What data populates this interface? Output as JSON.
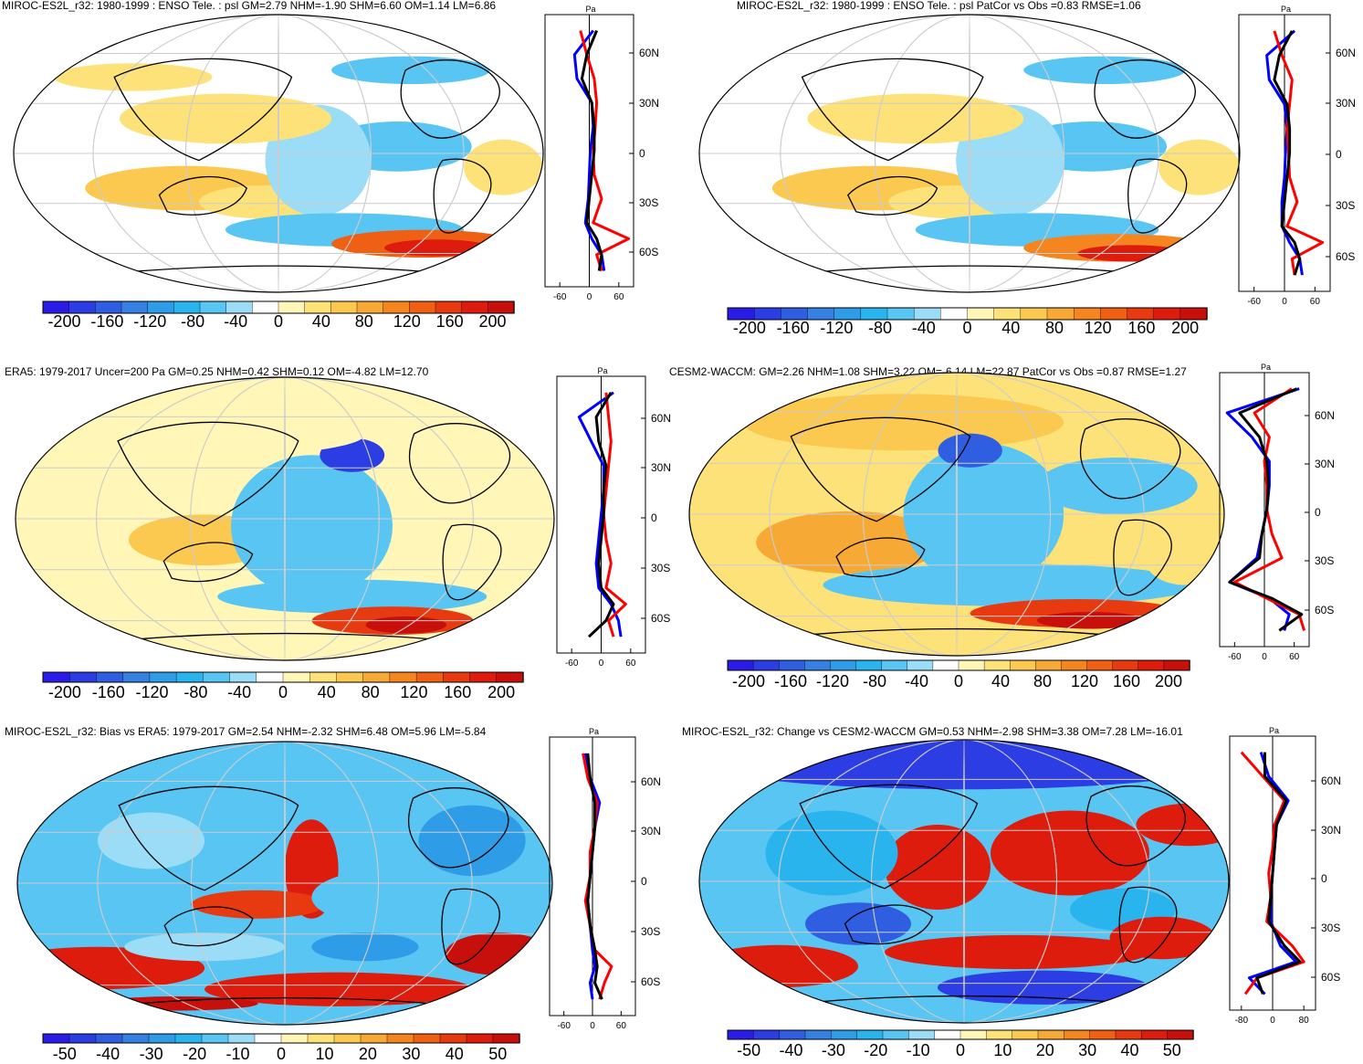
{
  "palette_warm_cool": [
    "#2a1ce6",
    "#2b3de3",
    "#2f5ee0",
    "#3580e0",
    "#2f9ce8",
    "#29b4ee",
    "#59c5f2",
    "#9bdcf7",
    "#ffffff",
    "#fff6b8",
    "#fde27a",
    "#fbc94f",
    "#f7a935",
    "#f4851f",
    "#ef5f14",
    "#e83a10",
    "#dd1c0d",
    "#c7100c"
  ],
  "colorbar_a": {
    "labels": [
      "-200",
      "-160",
      "-120",
      "-80",
      "-40",
      "0",
      "40",
      "80",
      "120",
      "160",
      "200"
    ]
  },
  "colorbar_b": {
    "labels": [
      "-50",
      "-40",
      "-30",
      "-20",
      "-10",
      "0",
      "10",
      "20",
      "30",
      "40",
      "50"
    ]
  },
  "panels": [
    {
      "title": "MIROC-ES2L_r32: 1980-1999 : ENSO Tele. : psl GM=2.79 NHM=-1.90 SHM=6.60 OM=1.14 LM=6.86",
      "unit": "Pa",
      "lat_labels": [
        "60N",
        "30N",
        "0",
        "30S",
        "60S"
      ],
      "x_ticks": [
        "-60",
        "0",
        "60"
      ],
      "colorbar": "a"
    },
    {
      "title": "MIROC-ES2L_r32: 1980-1999 : ENSO Tele. : psl PatCor vs Obs =0.83 RMSE=1.06",
      "unit": "Pa",
      "lat_labels": [
        "60N",
        "30N",
        "0",
        "30S",
        "60S"
      ],
      "x_ticks": [
        "-60",
        "0",
        "60"
      ],
      "colorbar": "a"
    },
    {
      "title": "ERA5: 1979-2017 Uncer=200 Pa GM=0.25 NHM=0.42 SHM=0.12 OM=-4.82 LM=12.70",
      "unit": "Pa",
      "lat_labels": [
        "60N",
        "30N",
        "0",
        "30S",
        "60S"
      ],
      "x_ticks": [
        "-60",
        "0",
        "60"
      ],
      "colorbar": "a"
    },
    {
      "title": "CESM2-WACCM: GM=2.26 NHM=1.08 SHM=3.22 OM=-6.14 LM=22.87 PatCor vs Obs =0.87 RMSE=1.27",
      "unit": "Pa",
      "lat_labels": [
        "60N",
        "30N",
        "0",
        "30S",
        "60S"
      ],
      "x_ticks": [
        "-60",
        "0",
        "60"
      ],
      "colorbar": "a"
    },
    {
      "title": "MIROC-ES2L_r32: Bias vs ERA5: 1979-2017 GM=2.54 NHM=-2.32 SHM=6.48 OM=5.96 LM=-5.84",
      "unit": "Pa",
      "lat_labels": [
        "60N",
        "30N",
        "0",
        "30S",
        "60S"
      ],
      "x_ticks": [
        "-60",
        "0",
        "60"
      ],
      "colorbar": "b"
    },
    {
      "title": "MIROC-ES2L_r32: Change vs CESM2-WACCM GM=0.53 NHM=-2.98 SHM=3.38 OM=7.28 LM=-16.01",
      "unit": "Pa",
      "lat_labels": [
        "60N",
        "30N",
        "0",
        "30S",
        "60S"
      ],
      "x_ticks": [
        "-80",
        "0",
        "80"
      ],
      "colorbar": "b"
    }
  ],
  "chart_data": [
    {
      "type": "line",
      "title": "MIROC-ES2L_r32: 1980-1999 : ENSO Tele. : psl GM=2.79 NHM=-1.90 SHM=6.60 OM=1.14 LM=6.86",
      "xlabel": "Pa",
      "xlim": [
        -90,
        90
      ],
      "ylim": [
        -85,
        85
      ],
      "y": [
        75,
        60,
        45,
        30,
        15,
        0,
        -15,
        -30,
        -45,
        -55,
        -65,
        -75
      ],
      "series": [
        {
          "color": "#0000ff",
          "values": [
            8,
            -30,
            -25,
            5,
            8,
            2,
            0,
            -2,
            -8,
            5,
            25,
            30
          ]
        },
        {
          "color": "#ff0000",
          "values": [
            -18,
            -5,
            10,
            15,
            12,
            8,
            10,
            25,
            8,
            80,
            15,
            25
          ]
        },
        {
          "color": "#000000",
          "values": [
            15,
            -5,
            -15,
            5,
            10,
            10,
            5,
            0,
            -5,
            15,
            25,
            20
          ]
        }
      ]
    },
    {
      "type": "line",
      "title": "MIROC-ES2L_r32: 1980-1999 : ENSO Tele. : psl PatCor vs Obs =0.83 RMSE=1.06",
      "xlabel": "Pa",
      "xlim": [
        -90,
        90
      ],
      "ylim": [
        -85,
        85
      ],
      "y": [
        75,
        60,
        45,
        30,
        15,
        0,
        -15,
        -30,
        -45,
        -55,
        -65,
        -75
      ],
      "series": [
        {
          "color": "#0000ff",
          "values": [
            20,
            -35,
            -30,
            0,
            5,
            2,
            0,
            -5,
            -5,
            10,
            30,
            35
          ]
        },
        {
          "color": "#ff0000",
          "values": [
            -20,
            -5,
            15,
            10,
            5,
            8,
            10,
            25,
            5,
            75,
            15,
            20
          ]
        },
        {
          "color": "#000000",
          "values": [
            15,
            -10,
            -20,
            5,
            10,
            10,
            5,
            0,
            -5,
            20,
            30,
            20
          ]
        }
      ]
    },
    {
      "type": "line",
      "title": "ERA5: 1979-2017 Uncer=200 Pa GM=0.25 NHM=0.42 SHM=0.12 OM=-4.82 LM=12.70",
      "xlabel": "Pa",
      "xlim": [
        -90,
        90
      ],
      "ylim": [
        -85,
        85
      ],
      "y": [
        75,
        60,
        45,
        30,
        15,
        0,
        -15,
        -30,
        -45,
        -55,
        -65,
        -75
      ],
      "series": [
        {
          "color": "#0000ff",
          "values": [
            25,
            -45,
            -20,
            5,
            5,
            0,
            -5,
            -10,
            -5,
            20,
            35,
            40
          ]
        },
        {
          "color": "#ff0000",
          "values": [
            10,
            15,
            20,
            15,
            10,
            5,
            10,
            20,
            10,
            50,
            15,
            25
          ]
        },
        {
          "color": "#000000",
          "values": [
            20,
            -10,
            -5,
            10,
            5,
            5,
            0,
            -5,
            0,
            25,
            10,
            -25
          ]
        }
      ]
    },
    {
      "type": "line",
      "title": "CESM2-WACCM: GM=2.26 NHM=1.08 SHM=3.22 OM=-6.14 LM=22.87 PatCor vs Obs =0.87 RMSE=1.27",
      "xlabel": "Pa",
      "xlim": [
        -90,
        90
      ],
      "ylim": [
        -85,
        85
      ],
      "y": [
        75,
        60,
        45,
        30,
        15,
        0,
        -15,
        -30,
        -45,
        -55,
        -65,
        -75
      ],
      "series": [
        {
          "color": "#0000ff",
          "values": [
            70,
            -75,
            -25,
            10,
            10,
            5,
            -5,
            -15,
            -70,
            10,
            50,
            40
          ]
        },
        {
          "color": "#ff0000",
          "values": [
            55,
            -20,
            10,
            0,
            5,
            5,
            15,
            35,
            -60,
            5,
            70,
            80
          ]
        },
        {
          "color": "#000000",
          "values": [
            65,
            -50,
            -10,
            5,
            8,
            5,
            -5,
            -10,
            -70,
            15,
            75,
            30
          ]
        }
      ]
    },
    {
      "type": "line",
      "title": "MIROC-ES2L_r32: Bias vs ERA5: 1979-2017 GM=2.54 NHM=-2.32 SHM=6.48 OM=5.96 LM=-5.84",
      "xlabel": "Pa",
      "xlim": [
        -90,
        90
      ],
      "ylim": [
        -85,
        85
      ],
      "y": [
        75,
        60,
        45,
        30,
        15,
        0,
        -15,
        -30,
        -45,
        -55,
        -65,
        -75
      ],
      "series": [
        {
          "color": "#0000ff",
          "values": [
            -15,
            -5,
            15,
            5,
            0,
            -5,
            -10,
            -5,
            0,
            5,
            -5,
            0
          ]
        },
        {
          "color": "#ff0000",
          "values": [
            -20,
            -10,
            10,
            5,
            -5,
            -5,
            -15,
            -5,
            5,
            40,
            25,
            15
          ]
        },
        {
          "color": "#000000",
          "values": [
            -10,
            -5,
            5,
            5,
            0,
            -5,
            -10,
            -5,
            5,
            10,
            5,
            20
          ]
        }
      ]
    },
    {
      "type": "line",
      "title": "MIROC-ES2L_r32: Change vs CESM2-WACCM GM=0.53 NHM=-2.98 SHM=3.38 OM=7.28 LM=-16.01",
      "xlabel": "Pa",
      "xlim": [
        -110,
        110
      ],
      "ylim": [
        -85,
        85
      ],
      "y": [
        75,
        60,
        45,
        30,
        15,
        0,
        -15,
        -30,
        -45,
        -55,
        -65,
        -75
      ],
      "series": [
        {
          "color": "#0000ff",
          "values": [
            -30,
            -10,
            40,
            10,
            5,
            0,
            -5,
            -5,
            20,
            60,
            -60,
            -20
          ]
        },
        {
          "color": "#ff0000",
          "values": [
            -80,
            -25,
            30,
            5,
            0,
            -10,
            -5,
            -15,
            50,
            80,
            -40,
            -70
          ]
        },
        {
          "color": "#000000",
          "values": [
            -20,
            -20,
            35,
            10,
            5,
            0,
            -5,
            -10,
            30,
            70,
            -40,
            -25
          ]
        }
      ]
    }
  ]
}
